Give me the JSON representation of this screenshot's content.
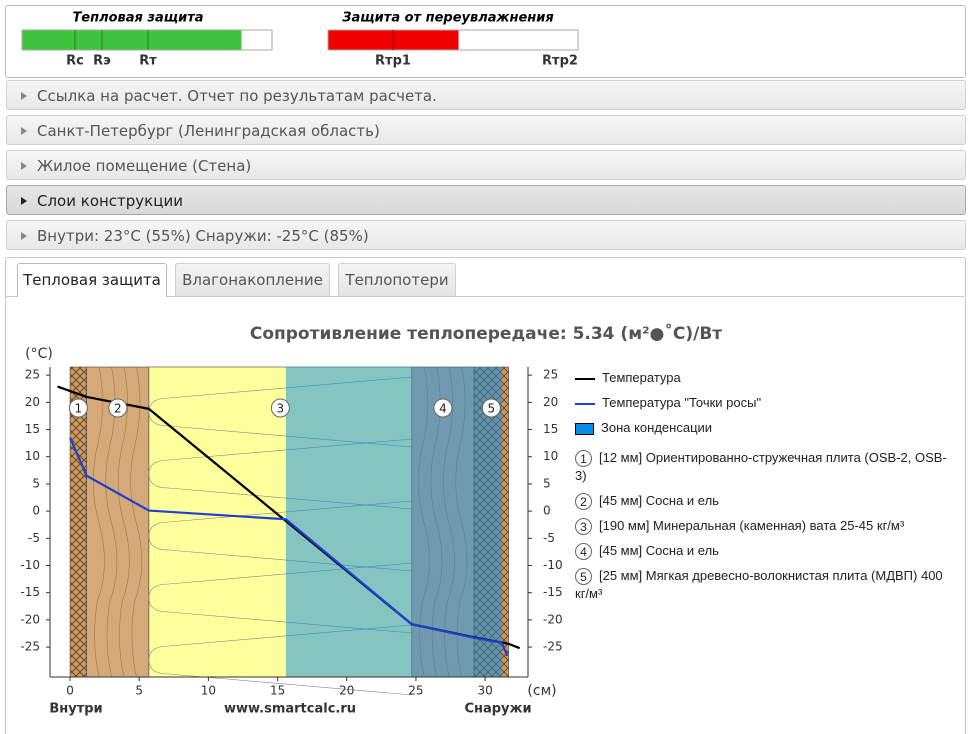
{
  "indicators": [
    {
      "title": "Тепловая защита",
      "markers": [
        "Rc",
        "Rэ",
        "Rт"
      ]
    },
    {
      "title": "Защита от переувлажнения",
      "markers": [
        "Rтр1",
        "Rтр2"
      ]
    }
  ],
  "accordion": [
    "Ссылка на расчет. Отчет по результатам расчета.",
    "Санкт-Петербург (Ленинградская область)",
    "Жилое помещение (Стена)",
    "Слои конструкции",
    "Внутри: 23°C (55%) Снаружи: -25°C (85%)"
  ],
  "tabs": [
    "Тепловая защита",
    "Влагонакопление",
    "Теплопотери"
  ],
  "chart_data": {
    "type": "line",
    "title": "Сопротивление теплопередаче: 5.34 (м²●˚С)/Вт",
    "y_label": "(°C)",
    "x_label": "(см)",
    "x_start_label": "Внутри",
    "x_center_label": "www.smartcalc.ru",
    "x_end_label": "Снаружи",
    "xlim": [
      -1.45,
      33.1
    ],
    "ylim": [
      -30.5,
      26.5
    ],
    "xticks": [
      0,
      5,
      10,
      15,
      20,
      25,
      30
    ],
    "yticks": [
      25,
      20,
      15,
      10,
      5,
      0,
      -5,
      -10,
      -15,
      -20,
      -25
    ],
    "layer_edges": [
      0,
      1.2,
      5.7,
      24.7,
      29.2,
      31.7
    ],
    "layers": [
      {
        "number": "1",
        "name": "[12 мм] Ориентированно-стружечная плита (OSB-2, OSB-3)",
        "color": "#c99a62",
        "hatch": true
      },
      {
        "number": "2",
        "name": "[45 мм] Сосна и ель",
        "color": "#d6a978",
        "hatch": false
      },
      {
        "number": "3",
        "name": "[190 мм] Минеральная (каменная) вата 25-45 кг/м³",
        "color": "#ffff9c",
        "hatch": false
      },
      {
        "number": "4",
        "name": "[45 мм] Сосна и ель",
        "color": "#d6a978",
        "hatch": false
      },
      {
        "number": "5",
        "name": "[25 мм] Мягкая древесно-волокнистая плита (МДВП) 400 кг/м³",
        "color": "#c99a62",
        "hatch": true
      }
    ],
    "condensation_zone": {
      "name": "Зона конденсации",
      "color": "#0a8ce6",
      "x": [
        15.6,
        31.2
      ]
    },
    "series": [
      {
        "name": "Температура",
        "color": "#000000",
        "x": [
          -0.9,
          1.2,
          5.7,
          24.7,
          29.2,
          31.7,
          32.5
        ],
        "values": [
          22.9,
          21.0,
          18.8,
          -20.8,
          -23.2,
          -24.4,
          -25.2
        ]
      },
      {
        "name": "Температура \"Точки росы\"",
        "color": "#1f3fd0",
        "x": [
          0,
          1.2,
          5.7,
          15.6,
          24.7,
          29.2,
          31.2,
          31.6
        ],
        "values": [
          13.5,
          6.5,
          0.1,
          -1.5,
          -20.8,
          -23.3,
          -24.2,
          -26.6
        ]
      }
    ]
  }
}
